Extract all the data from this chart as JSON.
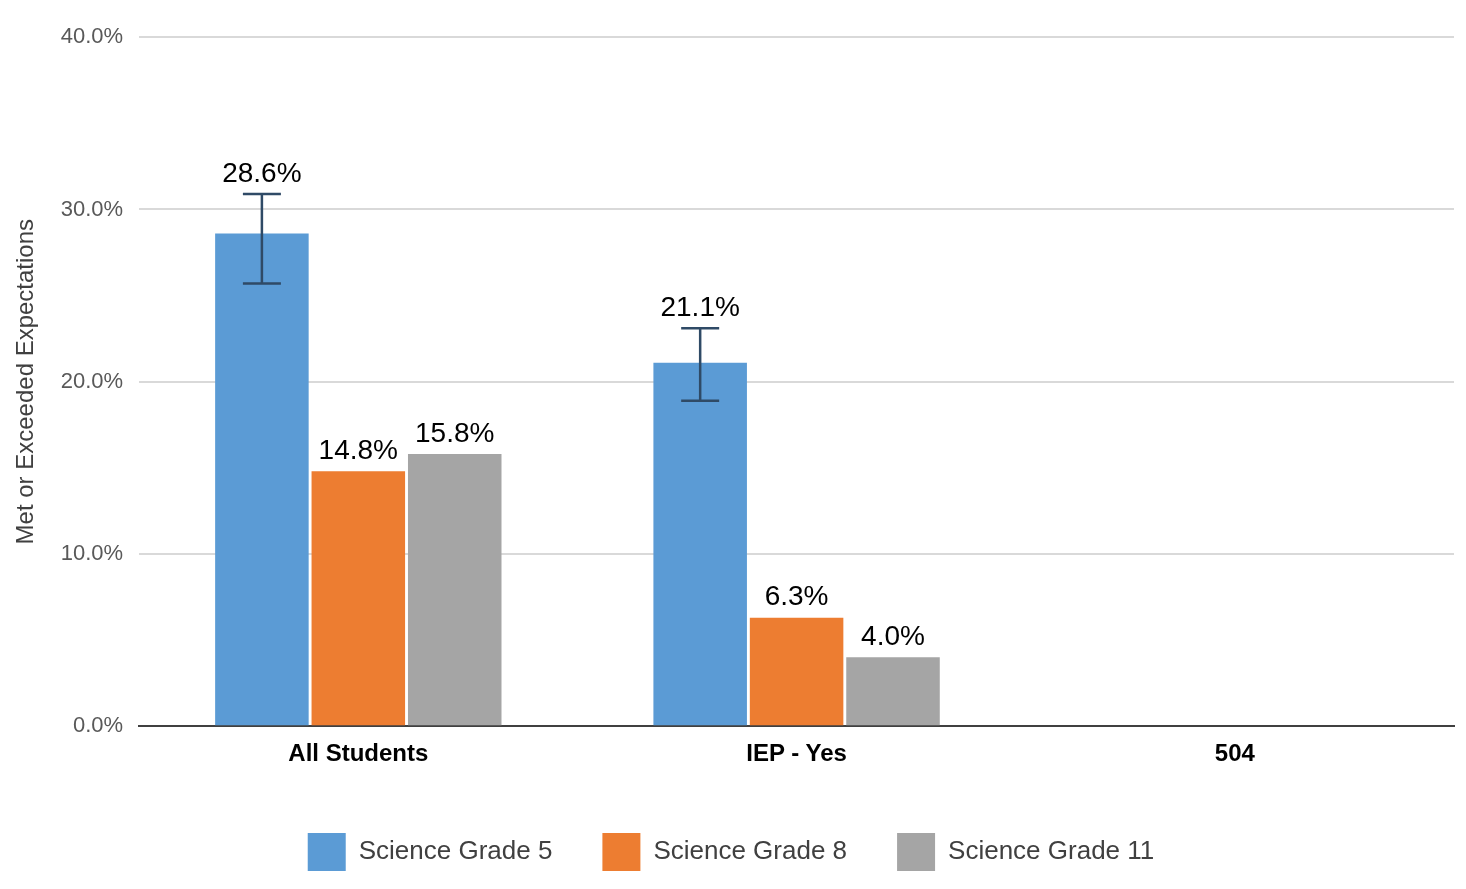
{
  "chart_data": {
    "type": "bar",
    "ylabel": "Met or Exceeded Expectations",
    "categories": [
      "All Students",
      "IEP - Yes",
      "504"
    ],
    "series": [
      {
        "name": "Science Grade 5",
        "color": "#5b9bd5",
        "values": [
          28.6,
          21.1,
          null
        ],
        "value_labels": [
          "28.6%",
          "21.1%",
          null
        ],
        "errors": [
          [
            25.7,
            30.9
          ],
          [
            18.9,
            23.1
          ],
          null
        ]
      },
      {
        "name": "Science Grade 8",
        "color": "#ed7d31",
        "values": [
          14.8,
          6.3,
          null
        ],
        "value_labels": [
          "14.8%",
          "6.3%",
          null
        ]
      },
      {
        "name": "Science Grade 11",
        "color": "#a5a5a5",
        "values": [
          15.8,
          4.0,
          null
        ],
        "value_labels": [
          "15.8%",
          "4.0%",
          null
        ]
      }
    ],
    "ylim": [
      0,
      40
    ],
    "yticks": [
      {
        "value": 0,
        "label": "0.0%"
      },
      {
        "value": 10,
        "label": "10.0%"
      },
      {
        "value": 20,
        "label": "20.0%"
      },
      {
        "value": 30,
        "label": "30.0%"
      },
      {
        "value": 40,
        "label": "40.0%"
      }
    ],
    "grid": "y",
    "legend": "bottom"
  }
}
